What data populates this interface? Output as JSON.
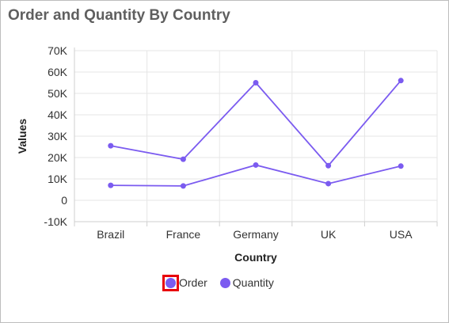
{
  "title": "Order and Quantity By Country",
  "legend": {
    "items": [
      {
        "label": "Order",
        "color": "#7b5bf0",
        "selected": true
      },
      {
        "label": "Quantity",
        "color": "#7b5bf0",
        "selected": false
      }
    ]
  },
  "chart_data": {
    "type": "line",
    "title": "Order and Quantity By Country",
    "xlabel": "Country",
    "ylabel": "Values",
    "categories": [
      "Brazil",
      "France",
      "Germany",
      "UK",
      "USA"
    ],
    "ylim": [
      -10000,
      70000
    ],
    "yticks": [
      -10000,
      0,
      10000,
      20000,
      30000,
      40000,
      50000,
      60000,
      70000
    ],
    "ytick_labels": [
      "-10K",
      "0",
      "10K",
      "20K",
      "30K",
      "40K",
      "50K",
      "60K",
      "70K"
    ],
    "grid": true,
    "legend_position": "bottom",
    "series": [
      {
        "name": "Order",
        "color": "#7b5bf0",
        "values": [
          7000,
          6700,
          16500,
          7800,
          16000
        ]
      },
      {
        "name": "Quantity",
        "color": "#7b5bf0",
        "values": [
          25500,
          19200,
          55000,
          16200,
          56000
        ]
      }
    ]
  }
}
